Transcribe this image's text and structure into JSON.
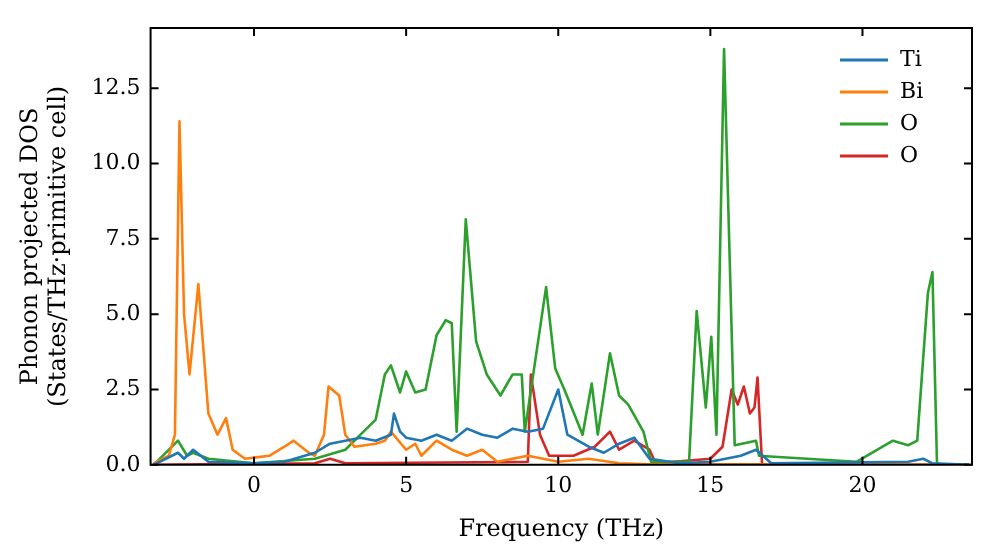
{
  "chart_data": {
    "type": "line",
    "xlabel": "Frequency (THz)",
    "ylabel": "Phonon projected DOS\n(States/THz·primitive cell)",
    "xlim": [
      -3.4,
      23.6
    ],
    "ylim": [
      0,
      14.5
    ],
    "xticks": [
      0,
      5,
      10,
      15,
      20
    ],
    "yticks": [
      {
        "value": 0,
        "label": "0.0"
      },
      {
        "value": 2.5,
        "label": "2.5"
      },
      {
        "value": 5,
        "label": "5.0"
      },
      {
        "value": 7.5,
        "label": "7.5"
      },
      {
        "value": 10,
        "label": "10.0"
      },
      {
        "value": 12.5,
        "label": "12.5"
      }
    ],
    "grid": false,
    "legend": "top right",
    "marker": "none",
    "line_style": "solid",
    "series": [
      {
        "name": "Ti",
        "color": "#1f77b4",
        "x": [
          -3.3,
          -2.5,
          -2.3,
          -2,
          -1.5,
          0,
          1,
          2,
          2.5,
          3,
          3.5,
          4,
          4.5,
          4.6,
          4.8,
          5,
          5.5,
          6,
          6.5,
          7,
          7.5,
          8,
          8.5,
          9,
          9.5,
          10,
          10.3,
          11,
          11.5,
          12,
          12.5,
          13,
          14,
          15,
          16,
          16.5,
          17,
          21.5,
          22,
          22.3,
          23.5
        ],
        "values": [
          0,
          0.4,
          0.2,
          0.5,
          0.1,
          0.05,
          0.1,
          0.4,
          0.7,
          0.8,
          0.9,
          0.8,
          1.0,
          1.7,
          1.1,
          0.9,
          0.8,
          1.0,
          0.8,
          1.2,
          1.0,
          0.9,
          1.2,
          1.1,
          1.2,
          2.5,
          1.0,
          0.6,
          0.4,
          0.7,
          0.9,
          0.2,
          0.05,
          0.1,
          0.3,
          0.5,
          0.05,
          0.1,
          0.2,
          0.05,
          0
        ]
      },
      {
        "name": "Bi",
        "color": "#ff7f0e",
        "x": [
          -3.3,
          -2.8,
          -2.6,
          -2.45,
          -2.3,
          -2.12,
          -1.83,
          -1.5,
          -1.2,
          -0.92,
          -0.7,
          -0.3,
          0.5,
          1.0,
          1.3,
          1.8,
          2.0,
          2.3,
          2.45,
          2.8,
          3.0,
          3.3,
          4.0,
          4.3,
          4.5,
          5.0,
          5.3,
          5.5,
          6.0,
          6.5,
          7.0,
          7.5,
          8.0,
          9.0,
          10.0,
          11.0,
          12.0,
          13.0,
          23.5
        ],
        "values": [
          0.05,
          0.3,
          1.0,
          11.4,
          5.0,
          3.0,
          6.0,
          1.7,
          1.0,
          1.55,
          0.5,
          0.2,
          0.3,
          0.6,
          0.8,
          0.4,
          0.3,
          1.0,
          2.6,
          2.3,
          1.0,
          0.6,
          0.7,
          0.8,
          1.1,
          0.5,
          0.7,
          0.3,
          0.8,
          0.5,
          0.3,
          0.5,
          0.1,
          0.3,
          0.1,
          0.2,
          0.05,
          0.02,
          0
        ]
      },
      {
        "name": "O",
        "color": "#2ca02c",
        "x": [
          -3.3,
          -2.5,
          -2.2,
          -2,
          -1.5,
          0,
          2,
          3,
          3.5,
          4,
          4.3,
          4.5,
          4.8,
          5.0,
          5.3,
          5.64,
          6.0,
          6.3,
          6.5,
          6.66,
          6.96,
          7.3,
          7.65,
          8.1,
          8.5,
          8.8,
          8.9,
          9.6,
          9.9,
          10.2,
          10.8,
          11.1,
          11.3,
          11.7,
          12.0,
          12.3,
          12.8,
          13.05,
          14.3,
          14.55,
          14.85,
          15.03,
          15.2,
          15.45,
          15.8,
          16.5,
          16.6,
          19.8,
          21.0,
          21.5,
          21.8,
          22.15,
          22.3,
          22.45,
          23.5
        ],
        "values": [
          0,
          0.8,
          0.3,
          0.4,
          0.2,
          0.05,
          0.2,
          0.5,
          1.0,
          1.5,
          3.0,
          3.3,
          2.4,
          3.1,
          2.4,
          2.5,
          4.3,
          4.8,
          4.7,
          1.1,
          8.15,
          4.1,
          3.0,
          2.3,
          3.0,
          3.0,
          1.1,
          5.9,
          3.2,
          2.5,
          1.0,
          2.7,
          1.0,
          3.7,
          2.3,
          2.0,
          1.1,
          0.1,
          0.1,
          5.1,
          1.9,
          4.25,
          1.0,
          13.8,
          0.65,
          0.8,
          0.3,
          0.1,
          0.8,
          0.65,
          0.8,
          5.7,
          6.4,
          0,
          0
        ]
      },
      {
        "name": "O",
        "color": "#d62728",
        "x": [
          -3.3,
          2,
          2.5,
          3,
          9,
          9.1,
          9.4,
          9.7,
          10.5,
          11.2,
          11.7,
          12,
          12.5,
          13,
          13.2,
          15,
          15.4,
          15.7,
          15.9,
          16.1,
          16.3,
          16.45,
          16.55,
          16.7,
          23.5
        ],
        "values": [
          0,
          0.05,
          0.2,
          0.05,
          0.1,
          3.0,
          1.0,
          0.3,
          0.3,
          0.6,
          1.1,
          0.5,
          0.8,
          0.5,
          0.05,
          0.2,
          0.6,
          2.5,
          2.0,
          2.6,
          1.7,
          1.9,
          2.9,
          0,
          0
        ]
      }
    ]
  }
}
